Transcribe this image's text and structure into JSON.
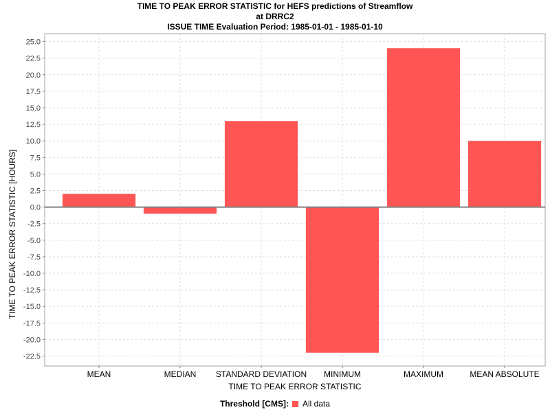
{
  "header": {
    "title_line1": "TIME TO PEAK ERROR STATISTIC for HEFS predictions of Streamflow",
    "title_line2": "at DRRC2",
    "title_line3": "ISSUE TIME Evaluation Period: 1985-01-01 - 1985-01-10"
  },
  "legend": {
    "title": "Threshold [CMS]:",
    "label": "All data"
  },
  "colors": {
    "bar": "#ff5555",
    "zero_line": "#808080"
  },
  "chart_data": {
    "type": "bar",
    "title": "TIME TO PEAK ERROR STATISTIC for HEFS predictions of Streamflow at DRRC2 ISSUE TIME Evaluation Period: 1985-01-01 - 1985-01-10",
    "xlabel": "TIME TO PEAK ERROR STATISTIC",
    "ylabel": "TIME TO PEAK ERROR STATISTIC [HOURS]",
    "categories": [
      "MEAN",
      "MEDIAN",
      "STANDARD DEVIATION",
      "MINIMUM",
      "MAXIMUM",
      "MEAN ABSOLUTE"
    ],
    "series": [
      {
        "name": "All data",
        "values": [
          2.0,
          -1.0,
          13.0,
          -22.0,
          24.0,
          10.0
        ]
      }
    ],
    "ylim": [
      -24.0,
      26.2
    ],
    "yticks": [
      25.0,
      22.5,
      20.0,
      17.5,
      15.0,
      12.5,
      10.0,
      7.5,
      5.0,
      2.5,
      0.0,
      -2.5,
      -5.0,
      -7.5,
      -10.0,
      -12.5,
      -15.0,
      -17.5,
      -20.0,
      -22.5
    ],
    "grid": true,
    "legend_position": "bottom"
  }
}
